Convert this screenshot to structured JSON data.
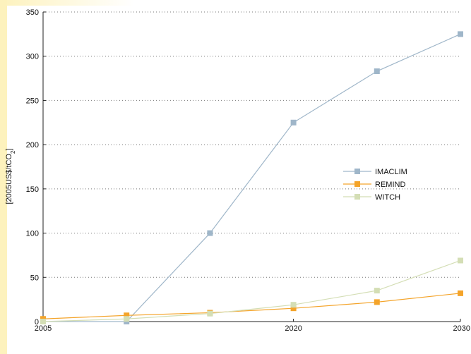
{
  "chart_data": {
    "type": "line",
    "title": "",
    "xlabel": "",
    "ylabel": "[2005US$/tCO",
    "ylabel_subscript": "2",
    "ylabel_suffix": "]",
    "x": [
      2005,
      2010,
      2015,
      2020,
      2025,
      2030
    ],
    "xticks": [
      "2005",
      "2020",
      "2030"
    ],
    "xtick_values": [
      2005,
      2020,
      2030
    ],
    "xlim": [
      2005,
      2030
    ],
    "yticks": [
      "0",
      "50",
      "100",
      "150",
      "200",
      "250",
      "300",
      "350"
    ],
    "ytick_values": [
      0,
      50,
      100,
      150,
      200,
      250,
      300,
      350
    ],
    "ylim": [
      0,
      350
    ],
    "grid": "horizontal-dotted",
    "legend_placement": "center-right",
    "series": [
      {
        "name": "IMACLIM",
        "color": "#9fb6c9",
        "values": [
          0,
          0,
          100,
          225,
          283,
          325
        ]
      },
      {
        "name": "REMIND",
        "color": "#f4a42a",
        "values": [
          3,
          7,
          10,
          15,
          22,
          32
        ]
      },
      {
        "name": "WITCH",
        "color": "#d4deb5",
        "values": [
          0,
          3,
          9,
          19,
          35,
          69
        ]
      }
    ]
  }
}
